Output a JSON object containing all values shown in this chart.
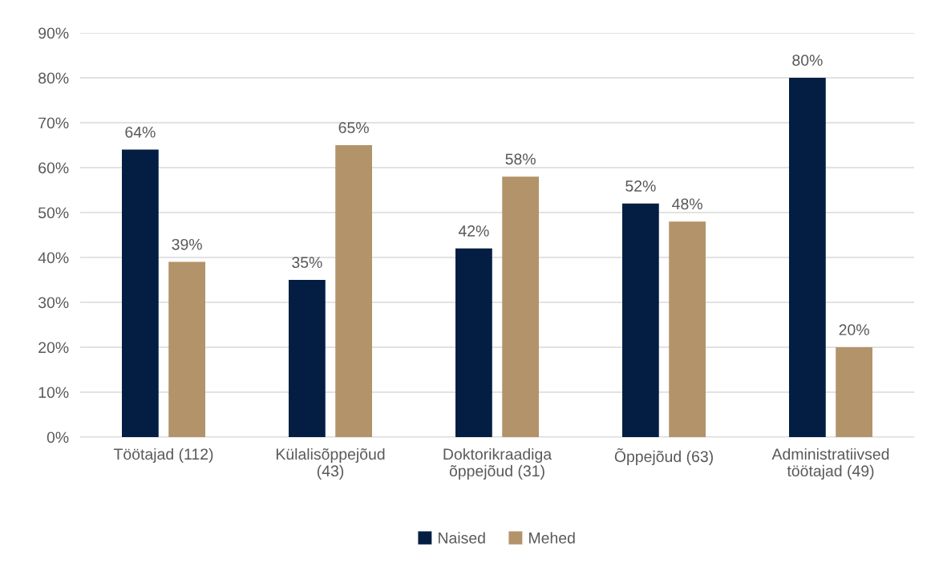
{
  "chart_data": {
    "type": "bar",
    "categories": [
      "Töötajad (112)",
      "Külalisõppejõud\n(43)",
      "Doktorikraadiga\nõppejõud (31)",
      "Õppejõud (63)",
      "Administratiivsed\ntöötajad (49)"
    ],
    "series": [
      {
        "name": "Naised",
        "color": "#031e42",
        "values": [
          64,
          35,
          42,
          52,
          80
        ],
        "value_labels": [
          "64%",
          "35%",
          "42%",
          "52%",
          "80%"
        ]
      },
      {
        "name": "Mehed",
        "color": "#b39369",
        "values": [
          39,
          65,
          58,
          48,
          20
        ],
        "value_labels": [
          "39%",
          "65%",
          "58%",
          "48%",
          "20%"
        ]
      }
    ],
    "ylim": [
      0,
      90
    ],
    "yticks": [
      {
        "value": 0,
        "label": "0%"
      },
      {
        "value": 10,
        "label": "10%"
      },
      {
        "value": 20,
        "label": "20%"
      },
      {
        "value": 30,
        "label": "30%"
      },
      {
        "value": 40,
        "label": "40%"
      },
      {
        "value": 50,
        "label": "50%"
      },
      {
        "value": 60,
        "label": "60%"
      },
      {
        "value": 70,
        "label": "70%"
      },
      {
        "value": 80,
        "label": "80%"
      },
      {
        "value": 90,
        "label": "90%"
      }
    ],
    "grid": "y",
    "legend": "bottom"
  }
}
